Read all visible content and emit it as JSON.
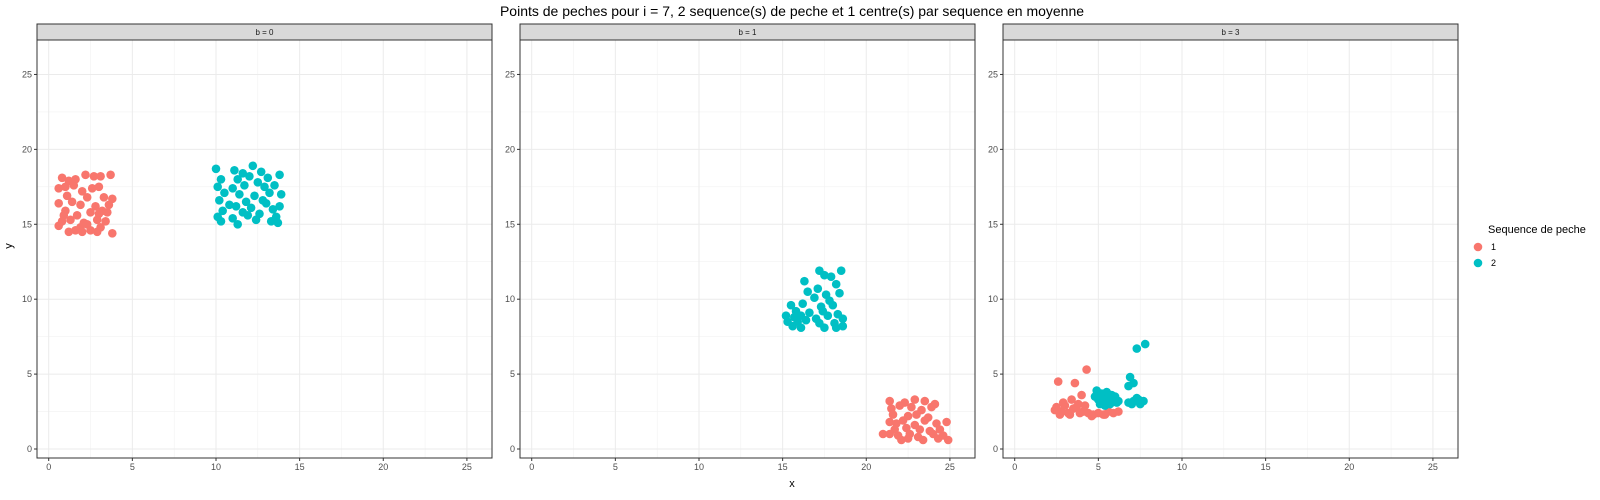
{
  "chart_data": {
    "type": "scatter",
    "title": "Points de peches pour i = 7, 2 sequence(s) de peche et 1 centre(s) par sequence en moyenne",
    "xlabel": "x",
    "ylabel": "y",
    "xlim": [
      -0.7,
      26.5
    ],
    "ylim": [
      -0.6,
      27.3
    ],
    "xticks": [
      0,
      5,
      10,
      15,
      20,
      25
    ],
    "yticks": [
      0,
      5,
      10,
      15,
      20,
      25
    ],
    "grid": true,
    "legend": {
      "title": "Sequence de peche",
      "position": "right",
      "entries": [
        {
          "label": "1",
          "color": "#F8766D"
        },
        {
          "label": "2",
          "color": "#00BFC4"
        }
      ]
    },
    "panels": [
      {
        "strip": "b = 0",
        "series": [
          {
            "name": "1",
            "color": "#F8766D",
            "points": [
              [
                0.8,
                18.1
              ],
              [
                1.2,
                17.9
              ],
              [
                1.6,
                18.0
              ],
              [
                2.2,
                18.3
              ],
              [
                2.7,
                18.2
              ],
              [
                3.1,
                18.2
              ],
              [
                3.7,
                18.3
              ],
              [
                0.6,
                17.4
              ],
              [
                1.0,
                17.5
              ],
              [
                1.5,
                17.6
              ],
              [
                2.0,
                17.2
              ],
              [
                2.6,
                17.4
              ],
              [
                3.0,
                17.5
              ],
              [
                1.1,
                16.9
              ],
              [
                2.3,
                16.8
              ],
              [
                3.3,
                16.8
              ],
              [
                3.8,
                16.7
              ],
              [
                0.6,
                16.4
              ],
              [
                1.4,
                16.5
              ],
              [
                1.9,
                16.3
              ],
              [
                2.8,
                16.2
              ],
              [
                3.6,
                16.3
              ],
              [
                1.0,
                15.9
              ],
              [
                2.5,
                15.8
              ],
              [
                3.2,
                15.9
              ],
              [
                0.9,
                15.6
              ],
              [
                1.7,
                15.6
              ],
              [
                3.0,
                15.7
              ],
              [
                3.5,
                15.8
              ],
              [
                0.8,
                15.2
              ],
              [
                1.3,
                15.3
              ],
              [
                2.1,
                15.1
              ],
              [
                2.9,
                15.3
              ],
              [
                3.4,
                15.2
              ],
              [
                0.6,
                14.9
              ],
              [
                1.9,
                14.8
              ],
              [
                2.3,
                15.0
              ],
              [
                3.1,
                14.8
              ],
              [
                1.2,
                14.5
              ],
              [
                1.6,
                14.6
              ],
              [
                2.0,
                14.5
              ],
              [
                2.5,
                14.6
              ],
              [
                2.9,
                14.5
              ],
              [
                3.8,
                14.4
              ]
            ]
          },
          {
            "name": "2",
            "color": "#00BFC4",
            "points": [
              [
                10.0,
                18.7
              ],
              [
                11.1,
                18.6
              ],
              [
                11.6,
                18.4
              ],
              [
                12.2,
                18.9
              ],
              [
                12.7,
                18.5
              ],
              [
                13.1,
                18.1
              ],
              [
                13.8,
                18.3
              ],
              [
                10.3,
                18.0
              ],
              [
                11.3,
                18.0
              ],
              [
                12.0,
                18.2
              ],
              [
                12.5,
                17.8
              ],
              [
                13.5,
                17.6
              ],
              [
                10.1,
                17.5
              ],
              [
                11.0,
                17.4
              ],
              [
                11.7,
                17.6
              ],
              [
                12.9,
                17.5
              ],
              [
                10.5,
                17.1
              ],
              [
                11.4,
                17.0
              ],
              [
                12.3,
                16.9
              ],
              [
                13.2,
                17.1
              ],
              [
                13.9,
                17.0
              ],
              [
                10.2,
                16.6
              ],
              [
                11.8,
                16.5
              ],
              [
                12.8,
                16.6
              ],
              [
                10.8,
                16.3
              ],
              [
                11.2,
                16.2
              ],
              [
                12.1,
                16.1
              ],
              [
                13.0,
                16.4
              ],
              [
                13.8,
                16.2
              ],
              [
                10.4,
                15.9
              ],
              [
                11.6,
                15.8
              ],
              [
                12.6,
                15.7
              ],
              [
                13.4,
                16.0
              ],
              [
                10.1,
                15.5
              ],
              [
                11.0,
                15.4
              ],
              [
                11.9,
                15.6
              ],
              [
                12.4,
                15.3
              ],
              [
                13.6,
                15.5
              ],
              [
                10.3,
                15.2
              ],
              [
                11.3,
                15.0
              ],
              [
                13.3,
                15.2
              ],
              [
                13.7,
                15.1
              ]
            ]
          }
        ]
      },
      {
        "strip": "b = 1",
        "series": [
          {
            "name": "1",
            "color": "#F8766D",
            "points": [
              [
                21.4,
                3.2
              ],
              [
                22.3,
                3.1
              ],
              [
                22.9,
                3.3
              ],
              [
                23.5,
                3.2
              ],
              [
                24.1,
                3.0
              ],
              [
                21.5,
                2.7
              ],
              [
                22.0,
                2.9
              ],
              [
                22.7,
                2.8
              ],
              [
                23.3,
                2.6
              ],
              [
                23.9,
                2.8
              ],
              [
                21.6,
                2.3
              ],
              [
                22.5,
                2.2
              ],
              [
                23.0,
                2.3
              ],
              [
                23.7,
                2.1
              ],
              [
                21.4,
                1.8
              ],
              [
                21.8,
                1.7
              ],
              [
                22.2,
                1.9
              ],
              [
                22.9,
                1.6
              ],
              [
                23.5,
                1.9
              ],
              [
                24.2,
                1.7
              ],
              [
                24.8,
                1.8
              ],
              [
                21.7,
                1.3
              ],
              [
                22.4,
                1.4
              ],
              [
                23.2,
                1.3
              ],
              [
                23.8,
                1.2
              ],
              [
                24.4,
                1.3
              ],
              [
                21.0,
                1.0
              ],
              [
                21.4,
                1.0
              ],
              [
                21.9,
                0.9
              ],
              [
                22.6,
                1.0
              ],
              [
                23.1,
                0.8
              ],
              [
                24.0,
                1.0
              ],
              [
                24.6,
                0.9
              ],
              [
                22.1,
                0.6
              ],
              [
                22.5,
                0.7
              ],
              [
                23.4,
                0.6
              ],
              [
                24.3,
                0.7
              ],
              [
                24.9,
                0.6
              ]
            ]
          },
          {
            "name": "2",
            "color": "#00BFC4",
            "points": [
              [
                17.2,
                11.9
              ],
              [
                18.5,
                11.9
              ],
              [
                17.5,
                11.6
              ],
              [
                17.9,
                11.5
              ],
              [
                16.3,
                11.2
              ],
              [
                18.2,
                11.0
              ],
              [
                17.1,
                10.7
              ],
              [
                16.5,
                10.5
              ],
              [
                17.6,
                10.3
              ],
              [
                18.4,
                10.4
              ],
              [
                16.9,
                10.1
              ],
              [
                17.8,
                9.9
              ],
              [
                15.5,
                9.6
              ],
              [
                16.2,
                9.7
              ],
              [
                17.3,
                9.5
              ],
              [
                18.0,
                9.6
              ],
              [
                15.8,
                9.2
              ],
              [
                16.6,
                9.1
              ],
              [
                17.4,
                9.2
              ],
              [
                18.3,
                9.0
              ],
              [
                15.2,
                8.9
              ],
              [
                15.7,
                8.8
              ],
              [
                16.1,
                8.9
              ],
              [
                17.0,
                8.7
              ],
              [
                17.7,
                8.9
              ],
              [
                18.6,
                8.7
              ],
              [
                15.3,
                8.5
              ],
              [
                15.9,
                8.5
              ],
              [
                16.4,
                8.6
              ],
              [
                17.2,
                8.4
              ],
              [
                18.1,
                8.4
              ],
              [
                15.6,
                8.2
              ],
              [
                16.1,
                8.1
              ],
              [
                17.5,
                8.1
              ],
              [
                18.2,
                8.1
              ],
              [
                18.6,
                8.2
              ]
            ]
          }
        ]
      },
      {
        "strip": "b = 3",
        "series": [
          {
            "name": "1",
            "color": "#F8766D",
            "points": [
              [
                4.3,
                5.3
              ],
              [
                2.6,
                4.5
              ],
              [
                3.6,
                4.4
              ],
              [
                4.0,
                3.6
              ],
              [
                2.4,
                2.6
              ],
              [
                2.8,
                2.5
              ],
              [
                3.0,
                2.9
              ],
              [
                3.2,
                2.4
              ],
              [
                3.5,
                2.7
              ],
              [
                3.8,
                3.0
              ],
              [
                4.1,
                2.5
              ],
              [
                4.4,
                2.4
              ],
              [
                4.7,
                2.3
              ],
              [
                5.0,
                2.4
              ],
              [
                5.3,
                2.3
              ],
              [
                5.6,
                2.5
              ],
              [
                5.9,
                2.4
              ],
              [
                6.2,
                2.5
              ],
              [
                2.7,
                2.3
              ],
              [
                3.3,
                2.3
              ],
              [
                3.9,
                2.4
              ],
              [
                4.6,
                2.2
              ],
              [
                5.4,
                2.3
              ],
              [
                2.9,
                3.1
              ],
              [
                3.4,
                3.3
              ],
              [
                3.7,
                2.8
              ],
              [
                4.2,
                2.9
              ],
              [
                2.5,
                2.8
              ]
            ]
          },
          {
            "name": "2",
            "color": "#00BFC4",
            "points": [
              [
                7.8,
                7.0
              ],
              [
                7.3,
                6.7
              ],
              [
                6.9,
                4.8
              ],
              [
                7.1,
                4.4
              ],
              [
                6.8,
                4.2
              ],
              [
                4.9,
                3.9
              ],
              [
                5.2,
                3.7
              ],
              [
                5.5,
                3.8
              ],
              [
                5.8,
                3.6
              ],
              [
                6.0,
                3.5
              ],
              [
                4.8,
                3.5
              ],
              [
                5.0,
                3.3
              ],
              [
                5.3,
                3.2
              ],
              [
                5.6,
                3.4
              ],
              [
                5.9,
                3.3
              ],
              [
                6.2,
                3.2
              ],
              [
                5.1,
                3.0
              ],
              [
                5.4,
                2.9
              ],
              [
                5.7,
                3.0
              ],
              [
                6.1,
                3.1
              ],
              [
                6.8,
                3.1
              ],
              [
                7.1,
                3.2
              ],
              [
                7.3,
                3.4
              ],
              [
                7.5,
                3.0
              ],
              [
                7.7,
                3.2
              ],
              [
                7.4,
                3.3
              ],
              [
                7.0,
                3.0
              ]
            ]
          }
        ]
      }
    ]
  }
}
